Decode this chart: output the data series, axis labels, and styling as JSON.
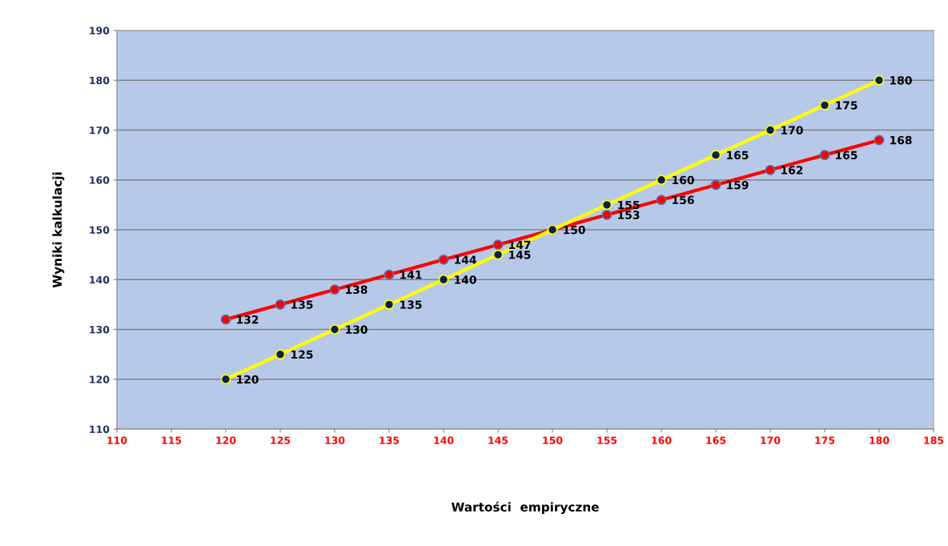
{
  "chart_data": {
    "type": "line",
    "xlabel": "Wartości  empiryczne",
    "ylabel": "Wyniki kalkulacji",
    "x": [
      120,
      125,
      130,
      135,
      140,
      145,
      150,
      155,
      160,
      165,
      170,
      175,
      180
    ],
    "series": [
      {
        "color": "#ff0000",
        "values": [
          132,
          135,
          138,
          141,
          144,
          147,
          150,
          153,
          156,
          159,
          162,
          165,
          168
        ]
      },
      {
        "color": "#ffff00",
        "values": [
          120,
          125,
          130,
          135,
          140,
          145,
          150,
          155,
          160,
          165,
          170,
          175,
          180
        ],
        "value_labels": [
          "120",
          "125",
          "130",
          "135",
          "140",
          "145",
          null,
          "155",
          "160",
          "165",
          "170",
          "175",
          "180"
        ]
      }
    ],
    "xlim": [
      110,
      185
    ],
    "xticks": [
      110,
      115,
      120,
      125,
      130,
      135,
      140,
      145,
      150,
      155,
      160,
      165,
      170,
      175,
      180,
      185
    ],
    "ylim": [
      110,
      190
    ],
    "yticks": [
      110,
      120,
      130,
      140,
      150,
      160,
      170,
      180,
      190
    ],
    "grid": "y",
    "marker": "circle",
    "line_style": "solid",
    "data_labels": true
  }
}
